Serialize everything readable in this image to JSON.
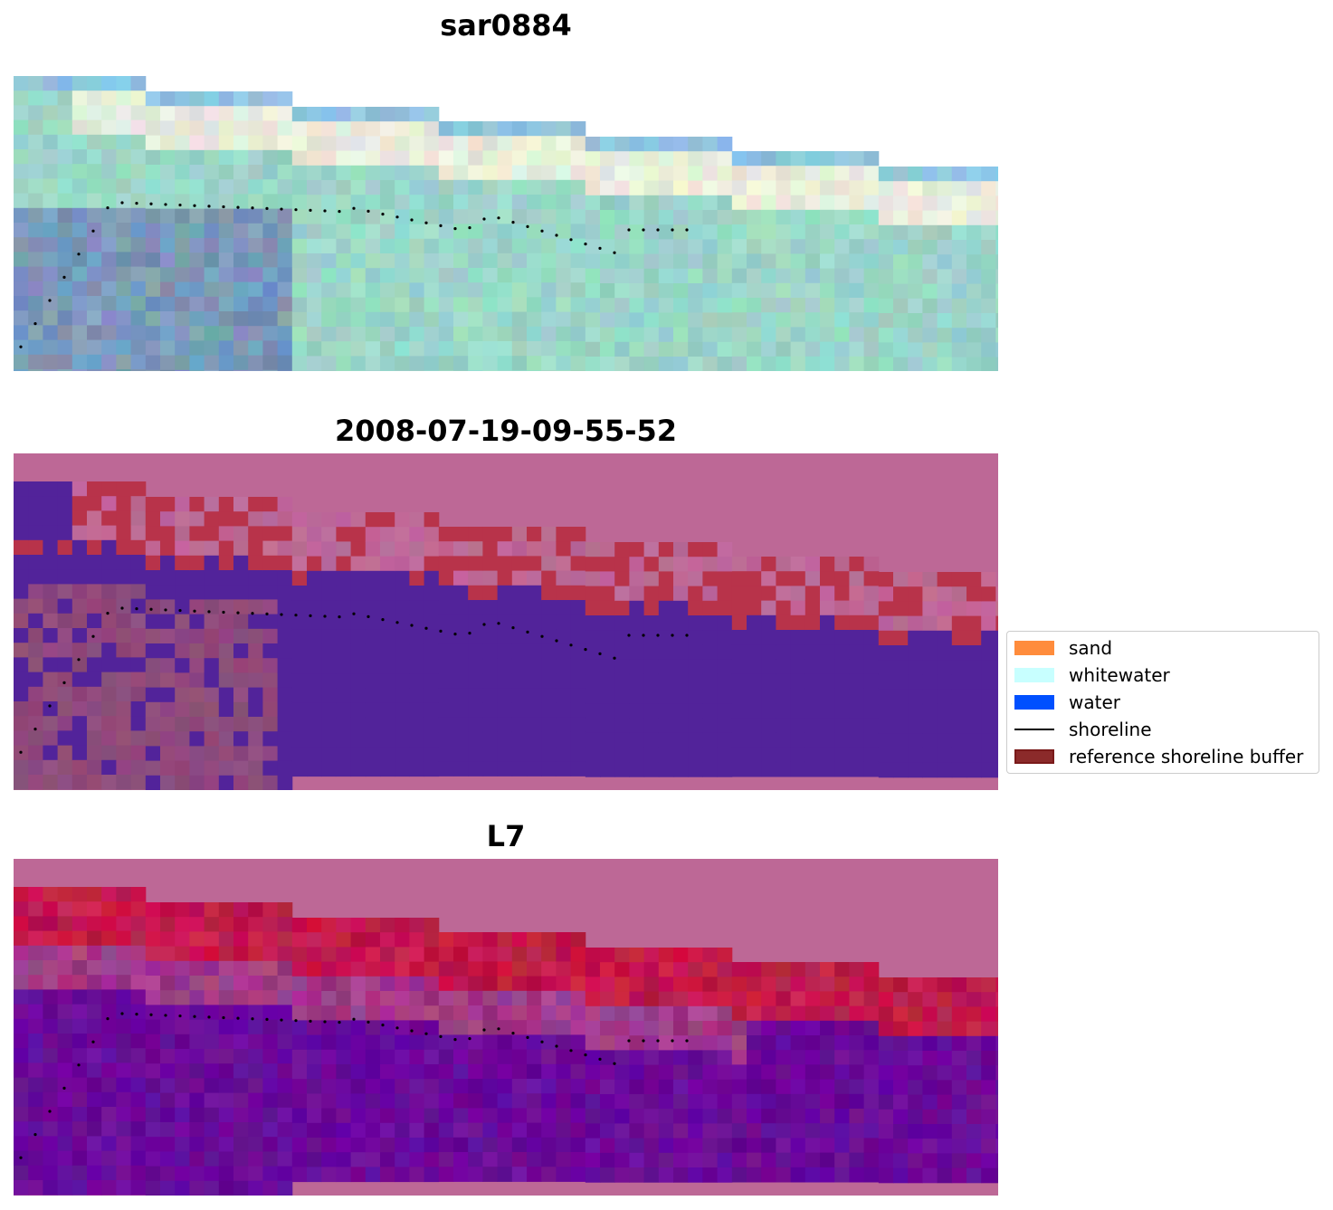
{
  "titles": {
    "rgb": "sar0884",
    "classification": "2008-07-19-09-55-52",
    "mndwi": "L7"
  },
  "legend": {
    "items": [
      {
        "label": "sand",
        "color": "#ff8c3c"
      },
      {
        "label": "whitewater",
        "color": "#c8ffff"
      },
      {
        "label": "water",
        "color": "#0050ff"
      },
      {
        "label": "shoreline",
        "color": "#000000"
      },
      {
        "label": "reference shoreline buffer",
        "color": "#8b2a2a"
      }
    ]
  },
  "colors": {
    "rgb_land": "#9bd6c8",
    "rgb_deep": "#7a9ab8",
    "rgb_sand": "#e8ecdc",
    "rgb_sky": "#8ec4e0",
    "mask": "#bd6896",
    "class_water": "#52239a",
    "class_buffer": "#b8334a",
    "class_land": "#8e4a7c",
    "index_sand": "#c21a4a",
    "index_water": "#6a0a9a"
  }
}
